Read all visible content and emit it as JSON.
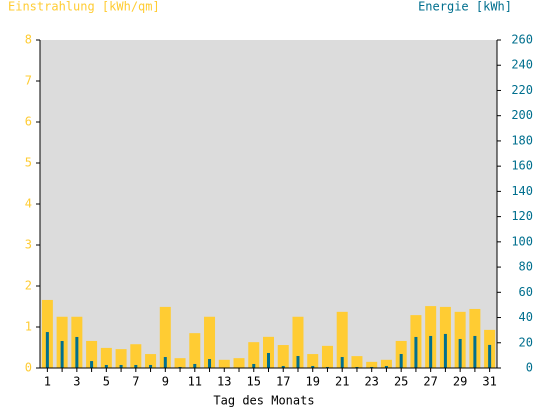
{
  "chart_data": {
    "type": "bar",
    "title_left": "Einstrahlung [kWh/qm]",
    "title_right": "Energie [kWh]",
    "xlabel": "Tag des Monats",
    "categories": [
      1,
      null,
      3,
      null,
      5,
      null,
      7,
      null,
      9,
      null,
      11,
      null,
      13,
      null,
      15,
      null,
      17,
      null,
      19,
      null,
      21,
      null,
      23,
      null,
      25,
      null,
      27,
      null,
      29,
      null,
      31
    ],
    "series": [
      {
        "name": "Einstrahlung",
        "color": "#ffcc33",
        "values": [
          1.66,
          1.25,
          1.25,
          0.66,
          0.49,
          0.46,
          0.58,
          0.34,
          1.49,
          0.24,
          0.85,
          1.25,
          0.2,
          0.24,
          0.63,
          0.76,
          0.56,
          1.25,
          0.34,
          0.54,
          1.37,
          0.29,
          0.15,
          0.2,
          0.66,
          1.29,
          1.51,
          1.49,
          1.37,
          1.44,
          0.93
        ]
      },
      {
        "name": "Energie",
        "color": "#006f8e",
        "axis": "y2",
        "values": [
          28.5,
          21.4,
          24.6,
          5.5,
          2.4,
          2.4,
          2.4,
          2.4,
          8.7,
          0.8,
          3.2,
          7.1,
          0,
          0,
          3.2,
          11.9,
          1.6,
          9.5,
          1.6,
          0.8,
          8.7,
          0.8,
          0.8,
          1.6,
          11.1,
          24.6,
          25.4,
          27,
          23,
          25.4,
          18.3
        ]
      }
    ],
    "ylim": [
      0,
      8
    ],
    "yticks": [
      0,
      1,
      2,
      3,
      4,
      5,
      6,
      7,
      8
    ],
    "y2lim": [
      0,
      260
    ],
    "y2ticks": [
      0,
      20,
      40,
      60,
      80,
      100,
      120,
      140,
      160,
      180,
      200,
      220,
      240,
      260
    ],
    "plot_background": "#dcdcdc"
  }
}
